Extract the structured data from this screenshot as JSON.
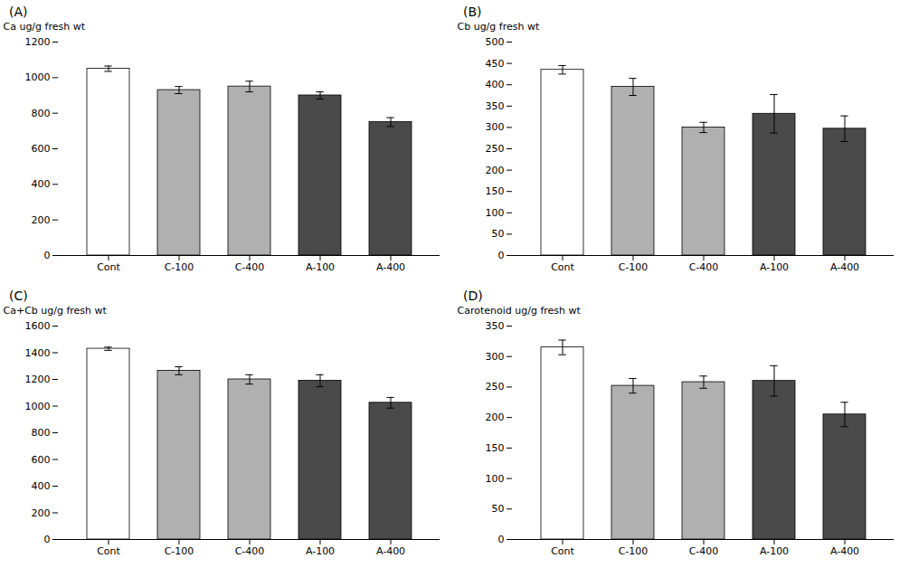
{
  "chart_data": [
    {
      "type": "bar",
      "title": "(A)",
      "y_label": "Ca ug/g fresh wt",
      "categories": [
        "Cont",
        "C-100",
        "C-400",
        "A-100",
        "A-400"
      ],
      "values": [
        1050,
        930,
        950,
        900,
        750
      ],
      "errors": [
        15,
        20,
        30,
        20,
        25
      ],
      "colors": [
        "white",
        "#b0b0b0",
        "#b0b0b0",
        "#4a4a4a",
        "#4a4a4a"
      ],
      "ylim": [
        0,
        1200
      ],
      "yticks": [
        0,
        200,
        400,
        600,
        800,
        1000,
        1200
      ],
      "grid": false
    },
    {
      "type": "bar",
      "title": "(B)",
      "y_label": "Cb ug/g fresh wt",
      "categories": [
        "Cont",
        "C-100",
        "C-400",
        "A-100",
        "A-400"
      ],
      "values": [
        435,
        395,
        300,
        332,
        297
      ],
      "errors": [
        10,
        20,
        12,
        45,
        30
      ],
      "colors": [
        "white",
        "#b0b0b0",
        "#b0b0b0",
        "#4a4a4a",
        "#4a4a4a"
      ],
      "ylim": [
        0,
        500
      ],
      "yticks": [
        0,
        50,
        100,
        150,
        200,
        250,
        300,
        350,
        400,
        450,
        500
      ],
      "grid": false
    },
    {
      "type": "bar",
      "title": "(C)",
      "y_label": "Ca+Cb ug/g fresh wt",
      "categories": [
        "Cont",
        "C-100",
        "C-400",
        "A-100",
        "A-400"
      ],
      "values": [
        1430,
        1265,
        1200,
        1190,
        1025
      ],
      "errors": [
        12,
        30,
        35,
        45,
        40
      ],
      "colors": [
        "white",
        "#b0b0b0",
        "#b0b0b0",
        "#4a4a4a",
        "#4a4a4a"
      ],
      "ylim": [
        0,
        1600
      ],
      "yticks": [
        0,
        200,
        400,
        600,
        800,
        1000,
        1200,
        1400,
        1600
      ],
      "grid": false
    },
    {
      "type": "bar",
      "title": "(D)",
      "y_label": "Carotenoid ug/g fresh wt",
      "categories": [
        "Cont",
        "C-100",
        "C-400",
        "A-100",
        "A-400"
      ],
      "values": [
        315,
        252,
        258,
        260,
        205
      ],
      "errors": [
        12,
        12,
        10,
        25,
        20
      ],
      "colors": [
        "white",
        "#b0b0b0",
        "#b0b0b0",
        "#4a4a4a",
        "#4a4a4a"
      ],
      "ylim": [
        0,
        350
      ],
      "yticks": [
        0,
        50,
        100,
        150,
        200,
        250,
        300,
        350
      ],
      "grid": false
    }
  ]
}
